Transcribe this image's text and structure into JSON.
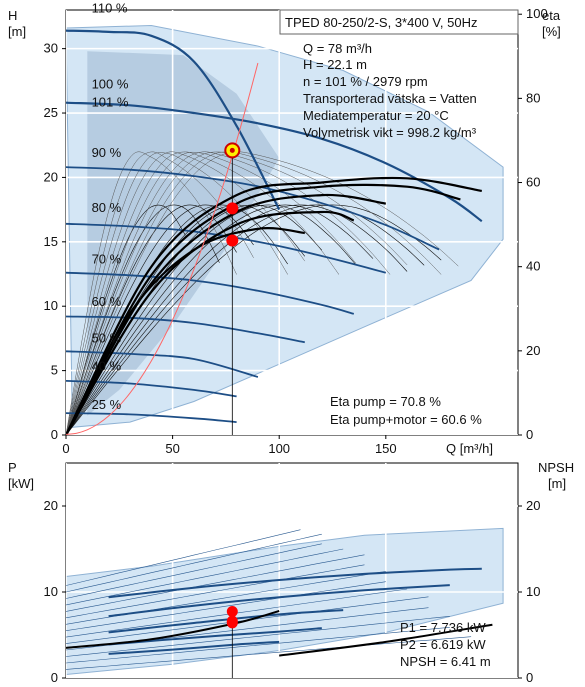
{
  "chart_data": [
    {
      "type": "line",
      "title": "TPED 80-250/2-S, 3*400 V, 50Hz",
      "left_axis": {
        "label": "H",
        "unit": "[m]",
        "ticks": [
          0,
          5,
          10,
          15,
          20,
          25,
          30
        ],
        "range": [
          0,
          33
        ]
      },
      "right_axis": {
        "label": "eta",
        "unit": "[%]",
        "ticks": [
          0,
          20,
          40,
          60,
          80,
          100
        ],
        "range": [
          0,
          101
        ]
      },
      "x_axis": {
        "label": "Q [m³/h]",
        "ticks": [
          0,
          50,
          100,
          150
        ],
        "range": [
          0,
          212
        ]
      },
      "info": [
        "Q = 78 m³/h",
        "H = 22.1 m",
        "n = 101 % / 2979 rpm",
        "Transporterad vätska = Vatten",
        "Mediatemperatur = 20 °C",
        "Volymetrisk vikt = 998.2 kg/m³"
      ],
      "eta_info": [
        "Eta pump = 70.8 %",
        "Eta pump+motor = 60.6 %"
      ],
      "speed_labels": [
        "110 %",
        "100 %",
        "101 %",
        "90 %",
        "80 %",
        "70 %",
        "60 %",
        "50 %",
        "40 %",
        "25 %"
      ],
      "head_series": [
        {
          "name": "110 %",
          "x": [
            0,
            20,
            40,
            60,
            80,
            100
          ],
          "y": [
            31.4,
            31.3,
            31.0,
            29.0,
            24.0,
            17.5
          ]
        },
        {
          "name": "101 %",
          "x": [
            0,
            30,
            60,
            90,
            120,
            150,
            180,
            195
          ],
          "y": [
            25.8,
            25.6,
            25.0,
            24.2,
            23.0,
            21.1,
            18.4,
            16.6
          ]
        },
        {
          "name": "90 %",
          "x": [
            0,
            30,
            60,
            90,
            120,
            150,
            175
          ],
          "y": [
            20.8,
            20.6,
            20.1,
            19.3,
            18.0,
            16.3,
            14.4
          ]
        },
        {
          "name": "80 %",
          "x": [
            0,
            30,
            60,
            90,
            120,
            150
          ],
          "y": [
            16.4,
            16.2,
            15.8,
            15.0,
            13.9,
            12.6
          ]
        },
        {
          "name": "70 %",
          "x": [
            0,
            30,
            60,
            90,
            120,
            135
          ],
          "y": [
            12.6,
            12.4,
            12.0,
            11.2,
            10.1,
            9.4
          ]
        },
        {
          "name": "60 %",
          "x": [
            0,
            30,
            60,
            90,
            112
          ],
          "y": [
            9.2,
            9.1,
            8.7,
            7.9,
            7.2
          ]
        },
        {
          "name": "50 %",
          "x": [
            0,
            30,
            60,
            90
          ],
          "y": [
            6.5,
            6.3,
            5.9,
            4.5
          ]
        },
        {
          "name": "40 %",
          "x": [
            0,
            30,
            60,
            80
          ],
          "y": [
            4.2,
            4.0,
            3.5,
            3.0
          ]
        },
        {
          "name": "25 %",
          "x": [
            0,
            30,
            60,
            80
          ],
          "y": [
            1.7,
            1.6,
            1.3,
            1.0
          ]
        }
      ],
      "eta_series": [
        {
          "x": [
            0,
            40,
            80,
            120,
            160,
            195
          ],
          "y": [
            0,
            40,
            57,
            60,
            61,
            58
          ]
        },
        {
          "x": [
            0,
            40,
            80,
            120,
            160,
            185
          ],
          "y": [
            0,
            38,
            55,
            59,
            59,
            56
          ]
        },
        {
          "x": [
            0,
            40,
            80,
            120,
            150
          ],
          "y": [
            0,
            36,
            53,
            57,
            55
          ]
        },
        {
          "x": [
            0,
            40,
            80,
            120,
            135
          ],
          "y": [
            0,
            34,
            50,
            53,
            51
          ]
        },
        {
          "x": [
            0,
            30,
            60,
            90,
            112
          ],
          "y": [
            0,
            29,
            44,
            49,
            48
          ]
        }
      ],
      "operating_points": [
        {
          "x": 78,
          "y": 22.1,
          "label": "duty point"
        },
        {
          "x": 78,
          "y": 17.6,
          "label": ""
        },
        {
          "x": 78,
          "y": 15.1,
          "label": ""
        }
      ]
    },
    {
      "type": "line",
      "left_axis": {
        "label": "P",
        "unit": "[kW]",
        "ticks": [
          0,
          10,
          20
        ],
        "range": [
          0,
          25
        ]
      },
      "right_axis": {
        "label": "NPSH",
        "unit": "[m]",
        "ticks": [
          0,
          10,
          20
        ],
        "range": [
          0,
          25
        ]
      },
      "info": [
        "P1 = 7.736 kW",
        "P2 = 6.619 kW",
        "NPSH = 6.41 m"
      ],
      "power_series": [
        {
          "x": [
            20,
            60,
            100,
            140,
            180,
            195
          ],
          "y": [
            9.4,
            10.5,
            11.4,
            12.1,
            12.6,
            12.7
          ]
        },
        {
          "x": [
            20,
            60,
            100,
            140,
            180
          ],
          "y": [
            7.2,
            8.4,
            9.4,
            10.2,
            10.8
          ]
        },
        {
          "x": [
            20,
            60,
            100,
            130
          ],
          "y": [
            5.3,
            6.4,
            7.4,
            7.9
          ]
        },
        {
          "x": [
            20,
            60,
            100,
            120
          ],
          "y": [
            3.9,
            4.7,
            5.4,
            5.8
          ]
        },
        {
          "x": [
            20,
            50,
            80,
            100
          ],
          "y": [
            2.8,
            3.3,
            3.9,
            4.2
          ]
        }
      ],
      "npsh_series": [
        {
          "x": [
            0,
            40,
            80,
            100
          ],
          "y": [
            3.5,
            4.5,
            6.4,
            7.8
          ]
        },
        {
          "x": [
            100,
            150,
            200
          ],
          "y": [
            2.6,
            4.2,
            6.2
          ]
        }
      ],
      "operating_points": [
        {
          "x": 78,
          "y": 7.736,
          "label": "P1"
        },
        {
          "x": 78,
          "y": 6.619,
          "label": "P2"
        },
        {
          "x": 78,
          "y": 6.41,
          "label": "NPSH"
        }
      ]
    }
  ],
  "colors": {
    "curve": "#1d4e86",
    "envelope": "#cde2f4",
    "inner": "#9bb5d0",
    "point": "#ff0000",
    "duty": "#ffee00",
    "red_line": "#ff6666"
  }
}
